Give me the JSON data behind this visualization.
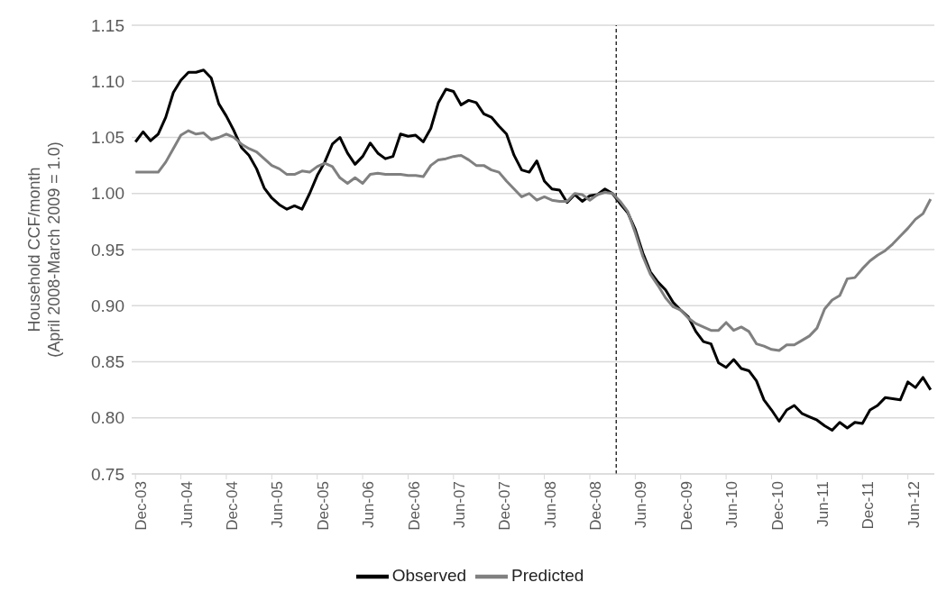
{
  "chart_data": {
    "type": "line",
    "ylabel": "Household CCF/month\n(April 2008-March 2009 = 1.0)",
    "x": [
      "2003-12",
      "2004-01",
      "2004-02",
      "2004-03",
      "2004-04",
      "2004-05",
      "2004-06",
      "2004-07",
      "2004-08",
      "2004-09",
      "2004-10",
      "2004-11",
      "2004-12",
      "2005-01",
      "2005-02",
      "2005-03",
      "2005-04",
      "2005-05",
      "2005-06",
      "2005-07",
      "2005-08",
      "2005-09",
      "2005-10",
      "2005-11",
      "2005-12",
      "2006-01",
      "2006-02",
      "2006-03",
      "2006-04",
      "2006-05",
      "2006-06",
      "2006-07",
      "2006-08",
      "2006-09",
      "2006-10",
      "2006-11",
      "2006-12",
      "2007-01",
      "2007-02",
      "2007-03",
      "2007-04",
      "2007-05",
      "2007-06",
      "2007-07",
      "2007-08",
      "2007-09",
      "2007-10",
      "2007-11",
      "2007-12",
      "2008-01",
      "2008-02",
      "2008-03",
      "2008-04",
      "2008-05",
      "2008-06",
      "2008-07",
      "2008-08",
      "2008-09",
      "2008-10",
      "2008-11",
      "2008-12",
      "2009-01",
      "2009-02",
      "2009-03",
      "2009-04",
      "2009-05",
      "2009-06",
      "2009-07",
      "2009-08",
      "2009-09",
      "2009-10",
      "2009-11",
      "2009-12",
      "2010-01",
      "2010-02",
      "2010-03",
      "2010-04",
      "2010-05",
      "2010-06",
      "2010-07",
      "2010-08",
      "2010-09",
      "2010-10",
      "2010-11",
      "2010-12",
      "2011-01",
      "2011-02",
      "2011-03",
      "2011-04",
      "2011-05",
      "2011-06",
      "2011-07",
      "2011-08",
      "2011-09",
      "2011-10",
      "2011-11",
      "2011-12",
      "2012-01",
      "2012-02",
      "2012-03",
      "2012-04",
      "2012-05",
      "2012-06",
      "2012-07",
      "2012-08",
      "2012-09"
    ],
    "series": [
      {
        "name": "Observed",
        "color": "#000000",
        "values": [
          1.046,
          1.055,
          1.047,
          1.053,
          1.068,
          1.09,
          1.101,
          1.108,
          1.108,
          1.11,
          1.103,
          1.08,
          1.069,
          1.056,
          1.041,
          1.034,
          1.022,
          1.005,
          0.996,
          0.99,
          0.986,
          0.989,
          0.986,
          1.0,
          1.016,
          1.028,
          1.044,
          1.05,
          1.036,
          1.026,
          1.033,
          1.045,
          1.036,
          1.031,
          1.033,
          1.053,
          1.051,
          1.052,
          1.046,
          1.058,
          1.081,
          1.093,
          1.091,
          1.079,
          1.083,
          1.081,
          1.071,
          1.068,
          1.06,
          1.053,
          1.034,
          1.021,
          1.019,
          1.029,
          1.011,
          1.004,
          1.003,
          0.992,
          0.999,
          0.993,
          0.998,
          0.999,
          1.004,
          1.0,
          0.991,
          0.983,
          0.968,
          0.947,
          0.93,
          0.921,
          0.914,
          0.903,
          0.896,
          0.89,
          0.877,
          0.868,
          0.866,
          0.849,
          0.845,
          0.852,
          0.844,
          0.842,
          0.833,
          0.816,
          0.807,
          0.797,
          0.807,
          0.811,
          0.804,
          0.801,
          0.798,
          0.793,
          0.789,
          0.796,
          0.791,
          0.796,
          0.795,
          0.807,
          0.811,
          0.818,
          0.817,
          0.816,
          0.832,
          0.827,
          0.836,
          0.825
        ]
      },
      {
        "name": "Predicted",
        "color": "#808080",
        "values": [
          1.019,
          1.019,
          1.019,
          1.019,
          1.028,
          1.04,
          1.052,
          1.056,
          1.053,
          1.054,
          1.048,
          1.05,
          1.053,
          1.05,
          1.044,
          1.04,
          1.037,
          1.031,
          1.025,
          1.022,
          1.017,
          1.017,
          1.02,
          1.019,
          1.024,
          1.027,
          1.024,
          1.014,
          1.009,
          1.014,
          1.009,
          1.017,
          1.018,
          1.017,
          1.017,
          1.017,
          1.016,
          1.016,
          1.015,
          1.025,
          1.03,
          1.031,
          1.033,
          1.034,
          1.03,
          1.025,
          1.025,
          1.021,
          1.019,
          1.011,
          1.004,
          0.997,
          1.0,
          0.994,
          0.997,
          0.994,
          0.993,
          0.993,
          1.0,
          0.999,
          0.994,
          0.999,
          1.001,
          1.0,
          0.993,
          0.984,
          0.965,
          0.944,
          0.928,
          0.918,
          0.907,
          0.899,
          0.896,
          0.889,
          0.884,
          0.881,
          0.878,
          0.878,
          0.885,
          0.878,
          0.881,
          0.877,
          0.866,
          0.864,
          0.861,
          0.86,
          0.865,
          0.865,
          0.869,
          0.873,
          0.88,
          0.897,
          0.905,
          0.909,
          0.924,
          0.925,
          0.933,
          0.94,
          0.945,
          0.949,
          0.955,
          0.962,
          0.969,
          0.977,
          0.982,
          0.995
        ]
      }
    ],
    "xlim": [
      "2003-11-16",
      "2012-09-16"
    ],
    "xticks": [
      {
        "value": "2003-12",
        "label": "Dec-03"
      },
      {
        "value": "2004-06",
        "label": "Jun-04"
      },
      {
        "value": "2004-12",
        "label": "Dec-04"
      },
      {
        "value": "2005-06",
        "label": "Jun-05"
      },
      {
        "value": "2005-12",
        "label": "Dec-05"
      },
      {
        "value": "2006-06",
        "label": "Jun-06"
      },
      {
        "value": "2006-12",
        "label": "Dec-06"
      },
      {
        "value": "2007-06",
        "label": "Jun-07"
      },
      {
        "value": "2007-12",
        "label": "Dec-07"
      },
      {
        "value": "2008-06",
        "label": "Jun-08"
      },
      {
        "value": "2008-12",
        "label": "Dec-08"
      },
      {
        "value": "2009-06",
        "label": "Jun-09"
      },
      {
        "value": "2009-12",
        "label": "Dec-09"
      },
      {
        "value": "2010-06",
        "label": "Jun-10"
      },
      {
        "value": "2010-12",
        "label": "Dec-10"
      },
      {
        "value": "2011-06",
        "label": "Jun-11"
      },
      {
        "value": "2011-12",
        "label": "Dec-11"
      },
      {
        "value": "2012-06",
        "label": "Jun-12"
      }
    ],
    "ylim": [
      0.75,
      1.15
    ],
    "yticks": [
      0.75,
      {
        "value": 0.8,
        "label": "0.80"
      },
      0.85,
      {
        "value": 0.9,
        "label": "0.90"
      },
      0.95,
      {
        "value": 1.0,
        "label": "1.00"
      },
      1.05,
      {
        "value": 1.1,
        "label": "1.10"
      },
      1.15
    ],
    "ref_lines": [
      {
        "axis": "x",
        "value": "2009-03-16",
        "color": "#000000",
        "line_style": "dashed"
      }
    ],
    "grid": "y",
    "legend": "bottom",
    "marker": "none",
    "line_style": "solid"
  }
}
